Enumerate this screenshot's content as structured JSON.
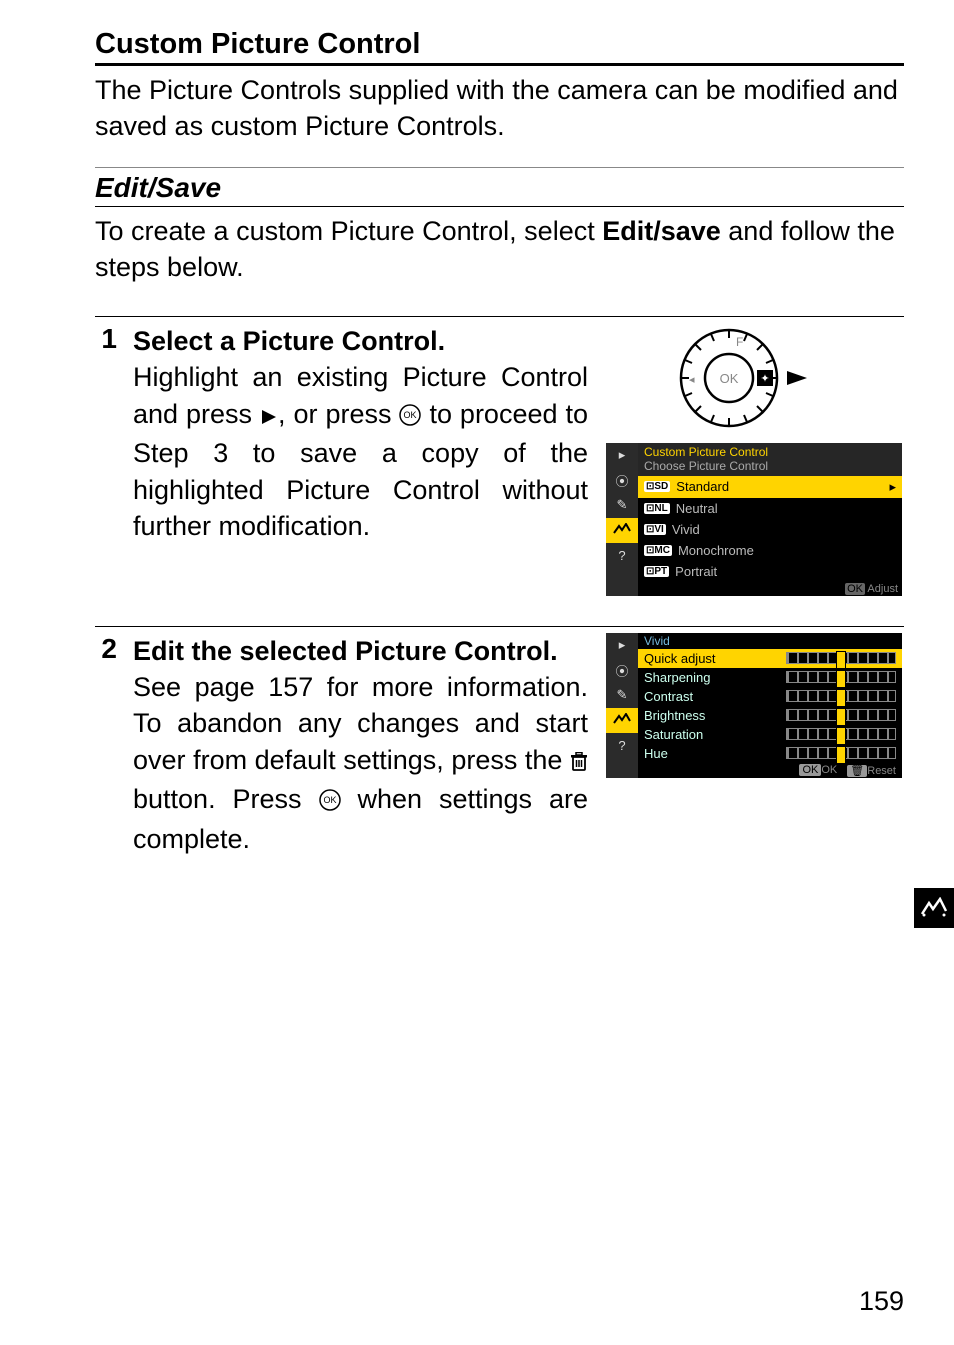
{
  "section": {
    "title": "Custom Picture Control",
    "body": "The Picture Controls supplied with the camera can be modified and saved as custom Picture Controls."
  },
  "sub": {
    "title": "Edit/Save",
    "body_pre": "To create a custom Picture Control, select ",
    "body_bold": "Edit/save",
    "body_post": " and follow the steps below."
  },
  "step1": {
    "num": "1",
    "title": "Select a Picture Control.",
    "body_pre": "Highlight an existing Picture Control and press ",
    "body_mid": ", or press ",
    "body_post": " to proceed to Step 3 to save a copy of the highlighted Picture Control without further modification."
  },
  "step2": {
    "num": "2",
    "title": "Edit the selected Picture Control.",
    "body_pre": "See page 157 for more information. To abandon any changes and start over from default settings, press the ",
    "body_mid": " button. Press ",
    "body_post": " when settings are complete."
  },
  "menu1": {
    "head": "Custom Picture Control",
    "subhead": "Choose Picture Control",
    "items": [
      {
        "tag": "SD",
        "label": "Standard",
        "selected": true
      },
      {
        "tag": "NL",
        "label": "Neutral",
        "selected": false
      },
      {
        "tag": "VI",
        "label": "Vivid",
        "selected": false
      },
      {
        "tag": "MC",
        "label": "Monochrome",
        "selected": false
      },
      {
        "tag": "PT",
        "label": "Portrait",
        "selected": false
      }
    ],
    "footer_icon": "OK",
    "footer": "Adjust"
  },
  "menu2": {
    "head": "Vivid",
    "rows": [
      {
        "label": "Quick adjust",
        "selected": true
      },
      {
        "label": "Sharpening",
        "selected": false
      },
      {
        "label": "Contrast",
        "selected": false
      },
      {
        "label": "Brightness",
        "selected": false
      },
      {
        "label": "Saturation",
        "selected": false
      },
      {
        "label": "Hue",
        "selected": false
      }
    ],
    "footer_ok": "OK",
    "footer_ok_label": "OK",
    "footer_trash_label": "Reset"
  },
  "sidebar_icons": [
    "▸",
    "✎",
    "✦",
    "✎",
    "?"
  ],
  "page_number": "159"
}
